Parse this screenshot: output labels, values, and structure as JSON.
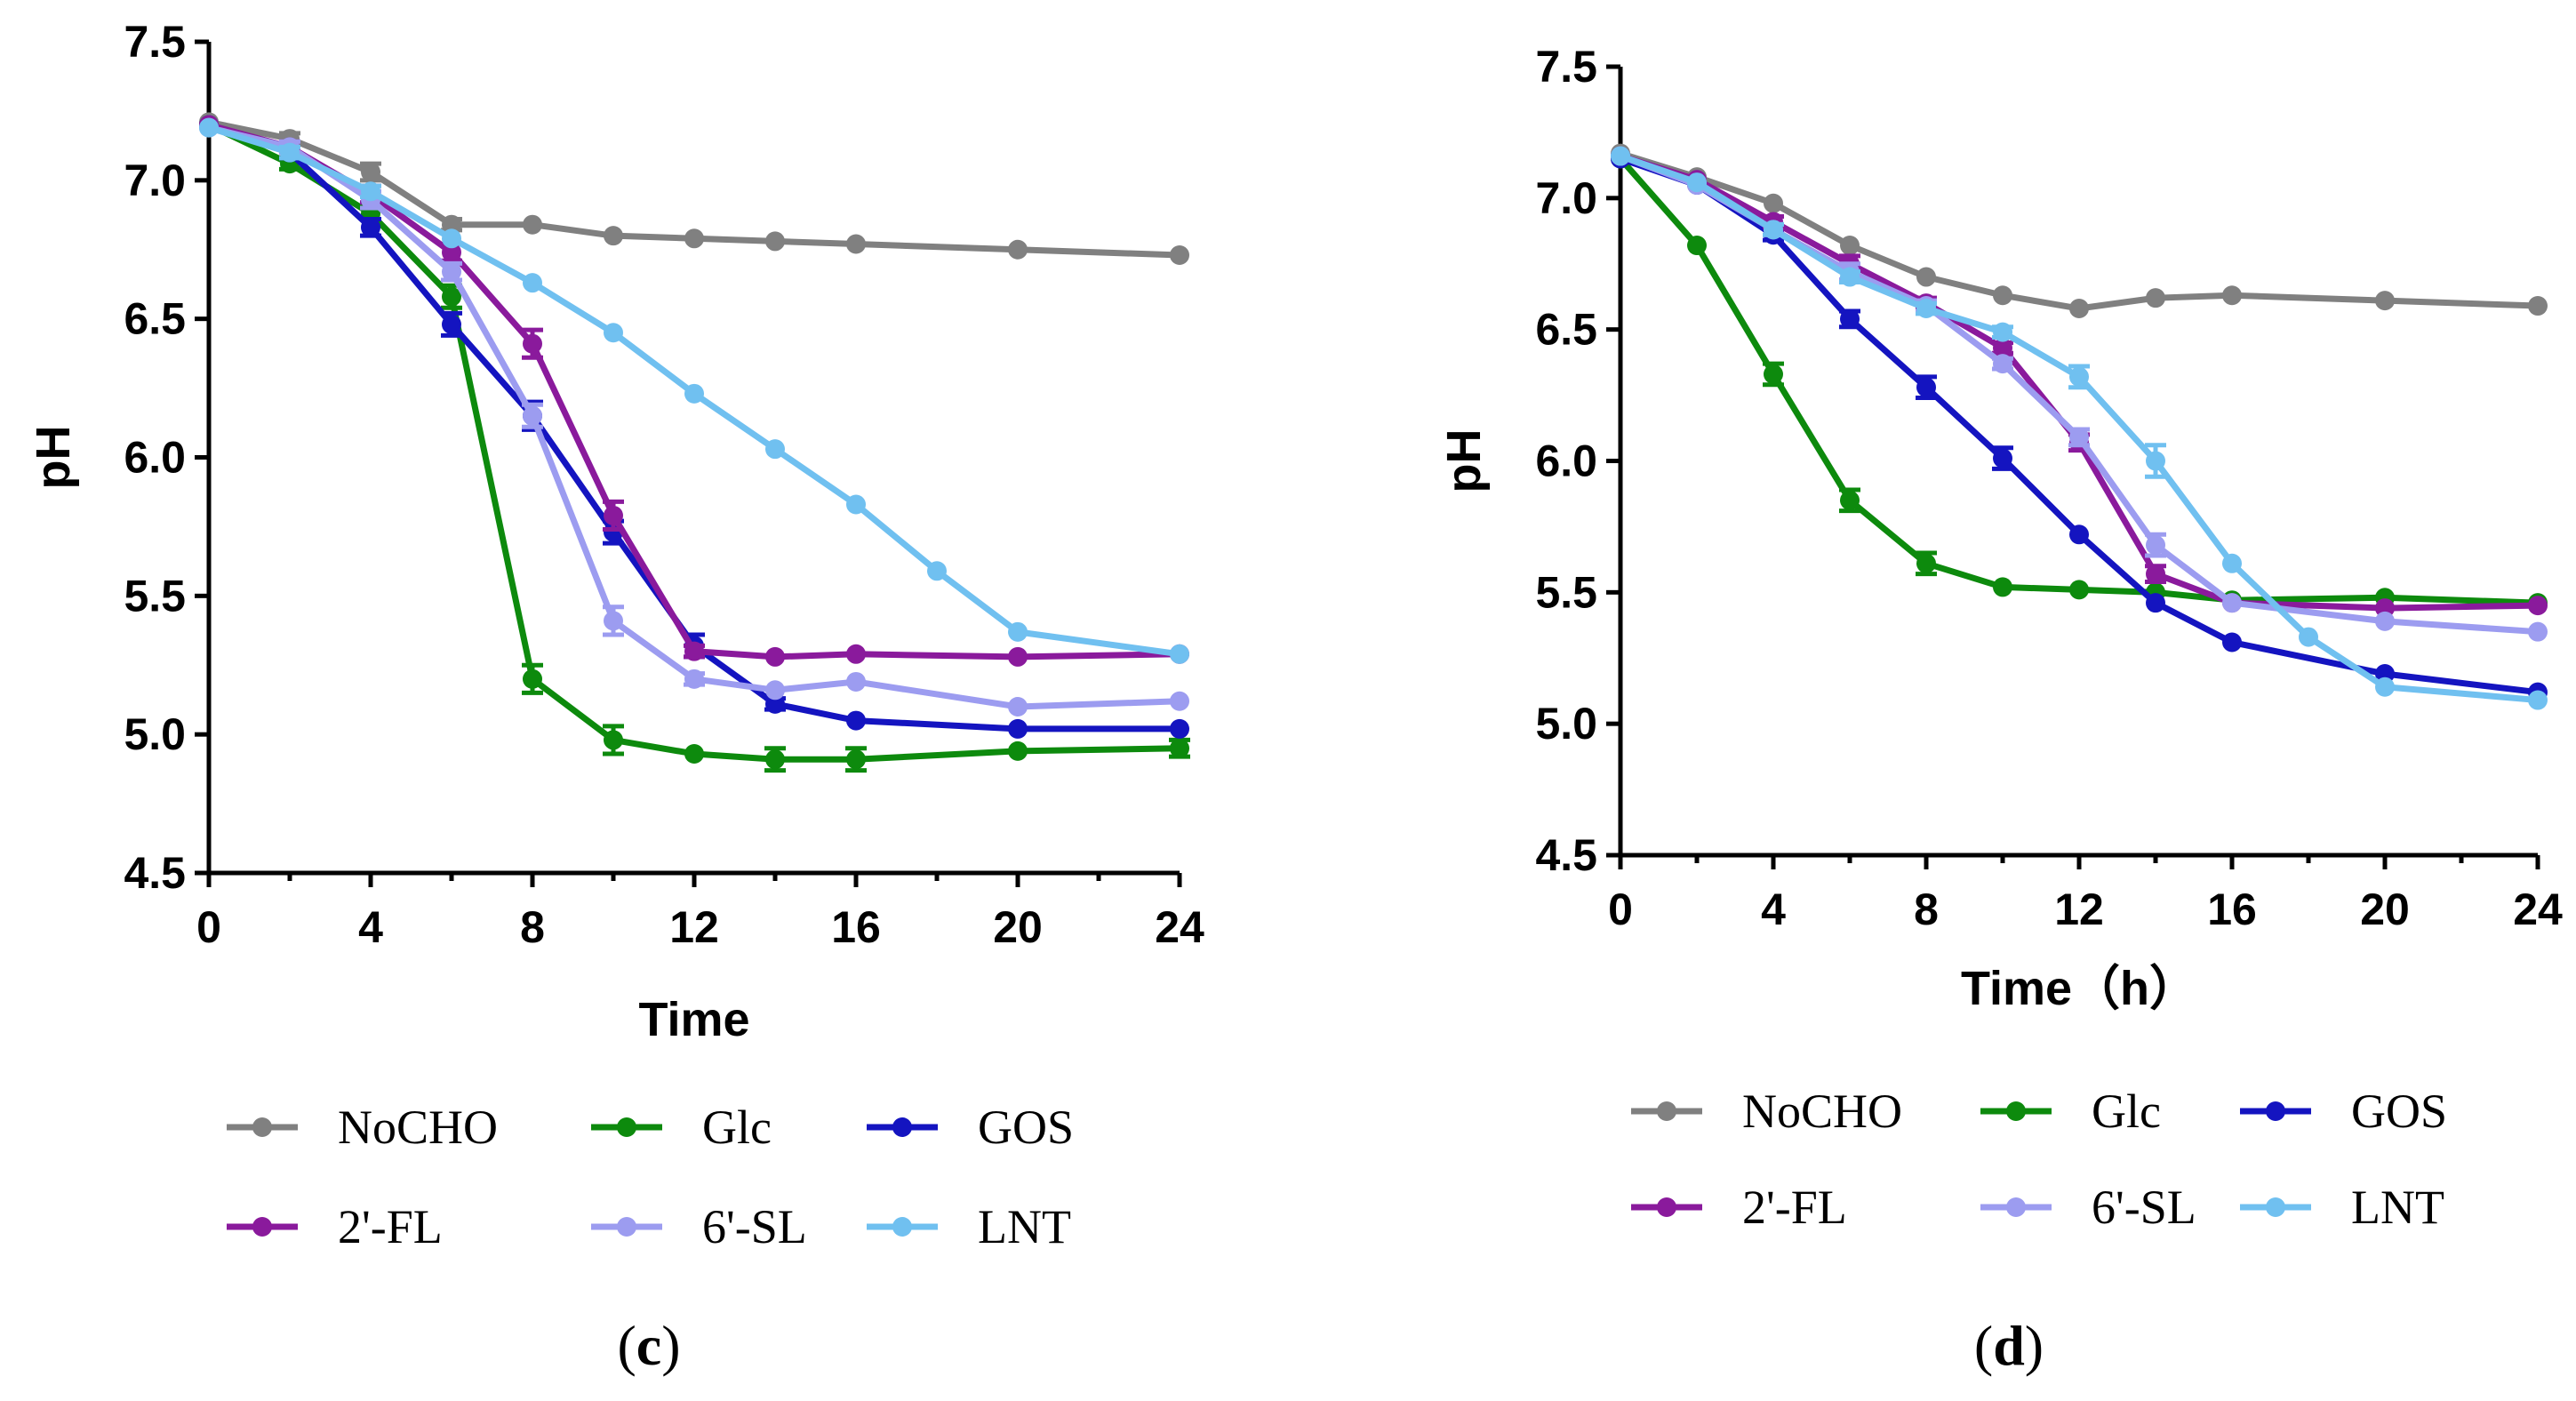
{
  "chart_data": [
    {
      "type": "line",
      "panel_label": "c",
      "xlabel": "Time",
      "ylabel": "pH",
      "xlim": [
        0,
        24
      ],
      "ylim": [
        4.5,
        7.5
      ],
      "xticks": [
        "0",
        "4",
        "8",
        "12",
        "16",
        "20",
        "24"
      ],
      "yticks": [
        "4.5",
        "5.0",
        "5.5",
        "6.0",
        "6.5",
        "7.0",
        "7.5"
      ],
      "series": [
        {
          "name": "NoCHO",
          "color": "#808080",
          "x": [
            0,
            2,
            4,
            6,
            8,
            10,
            12,
            14,
            16,
            20,
            24
          ],
          "values": [
            7.21,
            7.15,
            7.03,
            6.84,
            6.84,
            6.8,
            6.79,
            6.78,
            6.77,
            6.75,
            6.73
          ],
          "err": [
            0.01,
            0.02,
            0.03,
            0.02,
            0.01,
            0.01,
            0.01,
            0.01,
            0.01,
            0.01,
            0.01
          ]
        },
        {
          "name": "Glc",
          "color": "#0d8a0d",
          "x": [
            0,
            2,
            4,
            6,
            8,
            10,
            12,
            14,
            16,
            20,
            24
          ],
          "values": [
            7.2,
            7.06,
            6.88,
            6.58,
            5.2,
            4.98,
            4.93,
            4.91,
            4.91,
            4.94,
            4.95
          ],
          "err": [
            0.01,
            0.02,
            0.02,
            0.04,
            0.05,
            0.05,
            0.01,
            0.04,
            0.04,
            0.01,
            0.03
          ]
        },
        {
          "name": "GOS",
          "color": "#1414c0",
          "x": [
            0,
            2,
            4,
            6,
            8,
            10,
            12,
            14,
            16,
            20,
            24
          ],
          "values": [
            7.2,
            7.1,
            6.83,
            6.48,
            6.15,
            5.73,
            5.32,
            5.11,
            5.05,
            5.02,
            5.02
          ],
          "err": [
            0.01,
            0.02,
            0.03,
            0.04,
            0.05,
            0.04,
            0.04,
            0.02,
            0.01,
            0.01,
            0.01
          ]
        },
        {
          "name": "2'-FL",
          "color": "#8a1a9c",
          "x": [
            0,
            2,
            4,
            6,
            8,
            10,
            12,
            14,
            16,
            20,
            24
          ],
          "values": [
            7.2,
            7.12,
            6.95,
            6.74,
            6.41,
            5.79,
            5.3,
            5.28,
            5.29,
            5.28,
            5.29
          ],
          "err": [
            0.01,
            0.02,
            0.03,
            0.03,
            0.05,
            0.05,
            0.02,
            0.01,
            0.01,
            0.01,
            0.01
          ]
        },
        {
          "name": "6'-SL",
          "color": "#9c9cf0",
          "x": [
            0,
            2,
            4,
            6,
            8,
            10,
            12,
            14,
            16,
            20,
            24
          ],
          "values": [
            7.19,
            7.12,
            6.93,
            6.67,
            6.15,
            5.41,
            5.2,
            5.16,
            5.19,
            5.1,
            5.12
          ],
          "err": [
            0.01,
            0.02,
            0.03,
            0.03,
            0.04,
            0.05,
            0.02,
            0.01,
            0.01,
            0.01,
            0.01
          ]
        },
        {
          "name": "LNT",
          "color": "#70c0f0",
          "x": [
            0,
            2,
            4,
            6,
            8,
            10,
            12,
            14,
            16,
            18,
            20,
            24
          ],
          "values": [
            7.19,
            7.1,
            6.96,
            6.79,
            6.63,
            6.45,
            6.23,
            6.03,
            5.83,
            5.59,
            5.37,
            5.29
          ],
          "err": [
            0.01,
            0.02,
            0.02,
            0.01,
            0.01,
            0.01,
            0.01,
            0.01,
            0.01,
            0.01,
            0.01,
            0.01
          ]
        }
      ]
    },
    {
      "type": "line",
      "panel_label": "d",
      "xlabel": "Time（h）",
      "ylabel": "pH",
      "xlim": [
        0,
        24
      ],
      "ylim": [
        4.5,
        7.5
      ],
      "xticks": [
        "0",
        "4",
        "8",
        "12",
        "16",
        "20",
        "24"
      ],
      "yticks": [
        "4.5",
        "5.0",
        "5.5",
        "6.0",
        "6.5",
        "7.0",
        "7.5"
      ],
      "series": [
        {
          "name": "NoCHO",
          "color": "#808080",
          "x": [
            0,
            2,
            4,
            6,
            8,
            10,
            12,
            14,
            16,
            20,
            24
          ],
          "values": [
            7.17,
            7.08,
            6.98,
            6.82,
            6.7,
            6.63,
            6.58,
            6.62,
            6.63,
            6.61,
            6.59
          ],
          "err": [
            0.01,
            0.01,
            0.01,
            0.01,
            0.01,
            0.01,
            0.01,
            0.01,
            0.01,
            0.01,
            0.01
          ]
        },
        {
          "name": "Glc",
          "color": "#0d8a0d",
          "x": [
            0,
            2,
            4,
            6,
            8,
            10,
            12,
            14,
            16,
            20,
            24
          ],
          "values": [
            7.15,
            6.82,
            6.33,
            5.85,
            5.61,
            5.52,
            5.51,
            5.5,
            5.47,
            5.48,
            5.46
          ],
          "err": [
            0.01,
            0.01,
            0.04,
            0.04,
            0.04,
            0.01,
            0.01,
            0.01,
            0.01,
            0.01,
            0.01
          ]
        },
        {
          "name": "GOS",
          "color": "#1414c0",
          "x": [
            0,
            2,
            4,
            6,
            8,
            10,
            12,
            14,
            16,
            20,
            24
          ],
          "values": [
            7.15,
            7.05,
            6.86,
            6.54,
            6.28,
            6.01,
            5.72,
            5.46,
            5.31,
            5.19,
            5.12
          ],
          "err": [
            0.01,
            0.01,
            0.02,
            0.03,
            0.04,
            0.04,
            0.01,
            0.01,
            0.01,
            0.01,
            0.01
          ]
        },
        {
          "name": "2'-FL",
          "color": "#8a1a9c",
          "x": [
            0,
            2,
            4,
            6,
            8,
            10,
            12,
            14,
            16,
            20,
            24
          ],
          "values": [
            7.16,
            7.07,
            6.91,
            6.75,
            6.6,
            6.43,
            6.07,
            5.57,
            5.46,
            5.44,
            5.45
          ],
          "err": [
            0.01,
            0.01,
            0.02,
            0.03,
            0.02,
            0.02,
            0.03,
            0.03,
            0.01,
            0.01,
            0.01
          ]
        },
        {
          "name": "6'-SL",
          "color": "#9c9cf0",
          "x": [
            0,
            2,
            4,
            6,
            8,
            10,
            12,
            14,
            16,
            20,
            24
          ],
          "values": [
            7.16,
            7.05,
            6.88,
            6.72,
            6.59,
            6.37,
            6.09,
            5.68,
            5.46,
            5.39,
            5.35
          ],
          "err": [
            0.01,
            0.01,
            0.02,
            0.03,
            0.02,
            0.02,
            0.03,
            0.04,
            0.01,
            0.01,
            0.01
          ]
        },
        {
          "name": "LNT",
          "color": "#70c0f0",
          "x": [
            0,
            2,
            4,
            6,
            8,
            10,
            12,
            14,
            16,
            18,
            20,
            24
          ],
          "values": [
            7.16,
            7.06,
            6.88,
            6.7,
            6.58,
            6.49,
            6.32,
            6.0,
            5.61,
            5.33,
            5.14,
            5.09
          ],
          "err": [
            0.01,
            0.01,
            0.02,
            0.02,
            0.02,
            0.02,
            0.04,
            0.06,
            0.01,
            0.01,
            0.01,
            0.01
          ]
        }
      ]
    }
  ]
}
